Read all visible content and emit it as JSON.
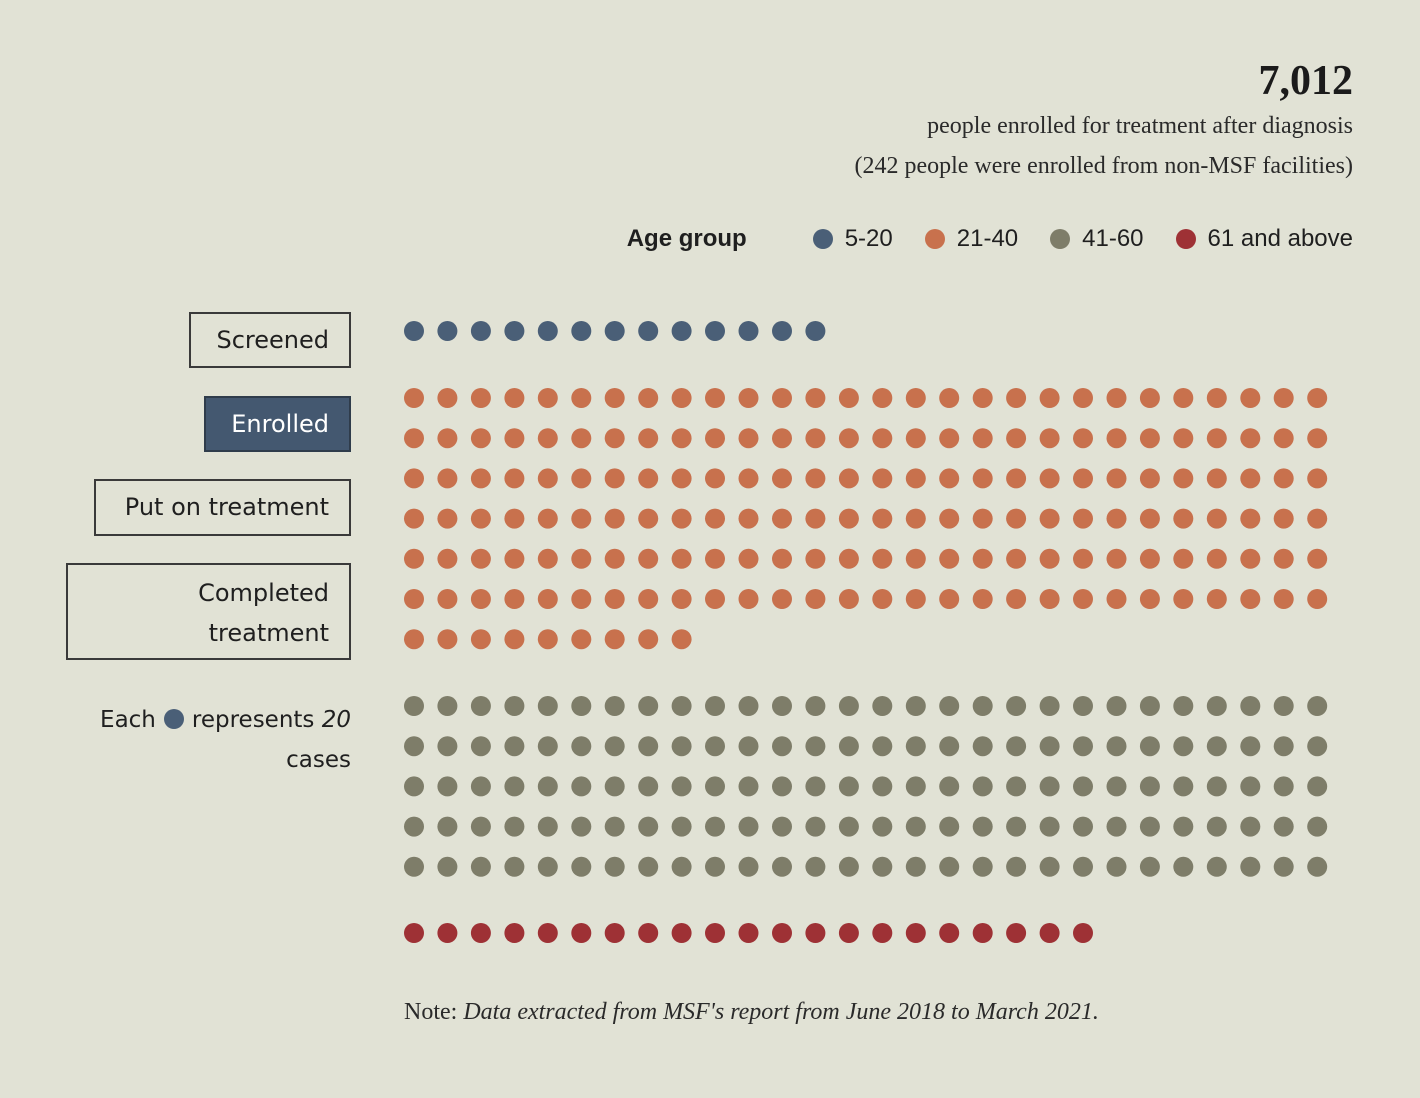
{
  "header": {
    "total": "7,012",
    "line1": "people enrolled for treatment after diagnosis",
    "line2": "(242 people were enrolled from non-MSF facilities)"
  },
  "legend": {
    "title": "Age group",
    "items": [
      {
        "label": "5-20",
        "color": "#4a5f77"
      },
      {
        "label": "21-40",
        "color": "#c8714d"
      },
      {
        "label": "41-60",
        "color": "#7e7d69"
      },
      {
        "label": "61 and above",
        "color": "#9e3135"
      }
    ]
  },
  "stages": {
    "screened": "Screened",
    "enrolled": "Enrolled",
    "put_on_treatment": "Put on treatment",
    "completed_line1": "Completed",
    "completed_line2": "treatment",
    "active": "enrolled"
  },
  "unit": {
    "each": "Each",
    "represents": "represents",
    "value": "20",
    "cases": "cases",
    "color": "#4a5f77"
  },
  "note": {
    "prefix": "Note:",
    "text": "Data extracted from MSF's report from June 2018 to March 2021."
  },
  "chart_data": {
    "type": "waffle",
    "unit_cases_per_dot": 20,
    "dots_per_row": 28,
    "series": [
      {
        "name": "5-20",
        "dots": 13,
        "color": "#4a5f77"
      },
      {
        "name": "21-40",
        "dots": 177,
        "color": "#c8714d"
      },
      {
        "name": "41-60",
        "dots": 140,
        "color": "#7e7d69"
      },
      {
        "name": "61 and above",
        "dots": 21,
        "color": "#9e3135"
      }
    ]
  }
}
